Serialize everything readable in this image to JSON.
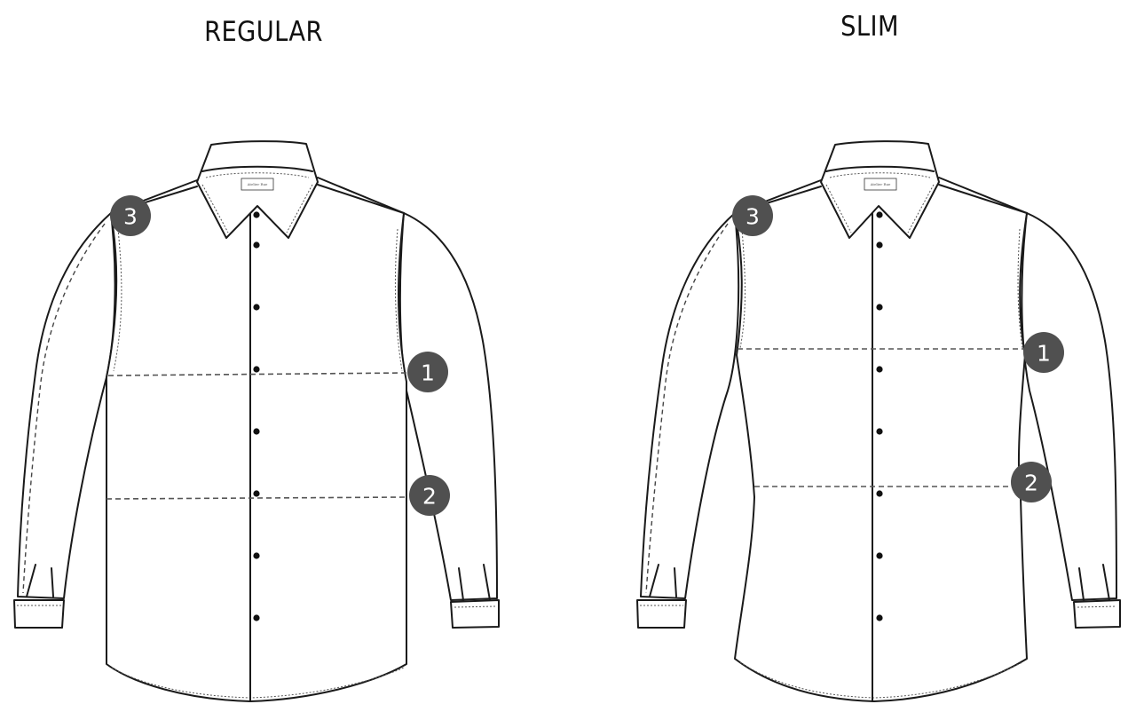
{
  "diagram": {
    "regular": {
      "title": "REGULAR",
      "badges": {
        "chest": "1",
        "waist": "2",
        "shoulder": "3"
      }
    },
    "slim": {
      "title": "SLIM",
      "badges": {
        "chest": "1",
        "waist": "2",
        "shoulder": "3"
      }
    }
  }
}
